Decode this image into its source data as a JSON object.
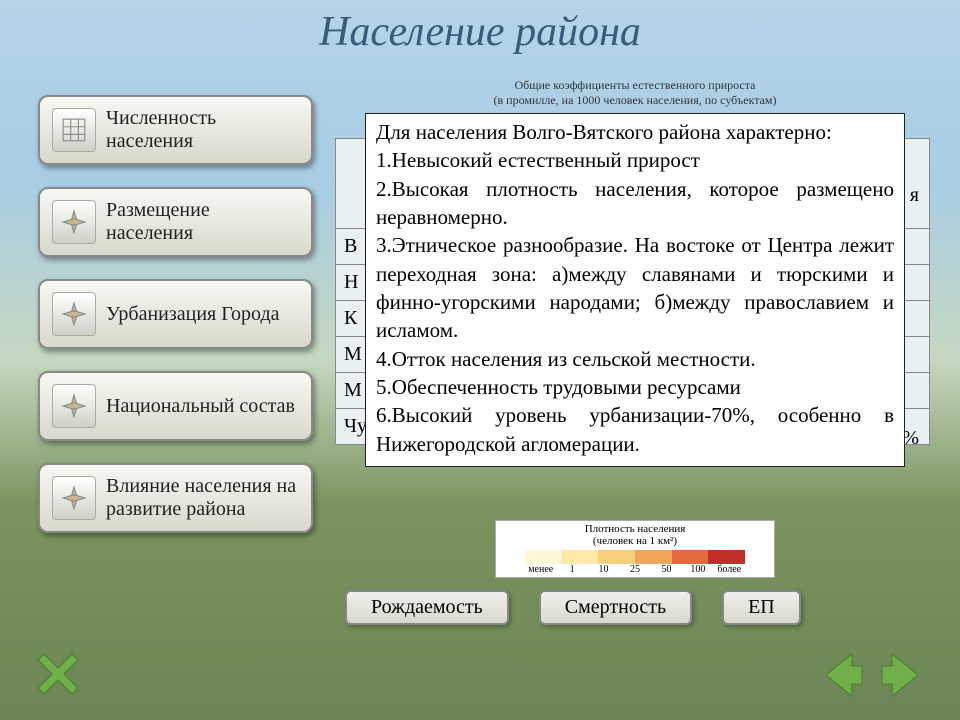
{
  "title": "Население района",
  "sidebar": {
    "items": [
      {
        "label": "Численность населения",
        "icon": "grid"
      },
      {
        "label": "Размещение населения",
        "icon": "compass"
      },
      {
        "label": "Урбанизация Города",
        "icon": "compass"
      },
      {
        "label": "Национальный состав",
        "icon": "compass"
      },
      {
        "label": "Влияние населения  на развитие района",
        "icon": "compass"
      }
    ]
  },
  "content": {
    "subtitle": "Общие коэффициенты естественного прироста",
    "subtitle2": "(в промилле, на 1000 человек населения, по субъектам)",
    "table_rows": [
      "В",
      "Н",
      "К",
      "М",
      "М",
      "Чу"
    ],
    "col_frag_top": "я",
    "col_frag_bottom": ",3%",
    "info_intro": "Для населения Волго-Вятского района характерно:",
    "info_points": [
      "1.Невысокий естественный прирост",
      "2.Высокая плотность населения, которое размещено неравномерно.",
      "3.Этническое разнообразие. На востоке  от Центра лежит переходная зона: а)между славянами и тюрскими и финно-угорскими народами; б)между православием и исламом.",
      "4.Отток населения из сельской местности.",
      "5.Обеспеченность трудовыми ресурсами",
      "6.Высокий уровень урбанизации-70%, особенно в Нижегородской агломерации."
    ],
    "density_title": "Плотность населения",
    "density_sub": "(человек на 1 км²)",
    "density_colors": [
      "#fdf6d8",
      "#fce9a8",
      "#f8cf7a",
      "#f0a55a",
      "#e36b3e",
      "#c22f2a"
    ],
    "density_ticks": [
      "менее",
      "1",
      "10",
      "25",
      "50",
      "100",
      "более"
    ],
    "bottom_buttons": [
      "Рождаемость",
      "Смертность",
      "ЕП"
    ]
  },
  "nav": {
    "close_color": "#6fb04a",
    "arrow_color": "#6fb04a"
  }
}
